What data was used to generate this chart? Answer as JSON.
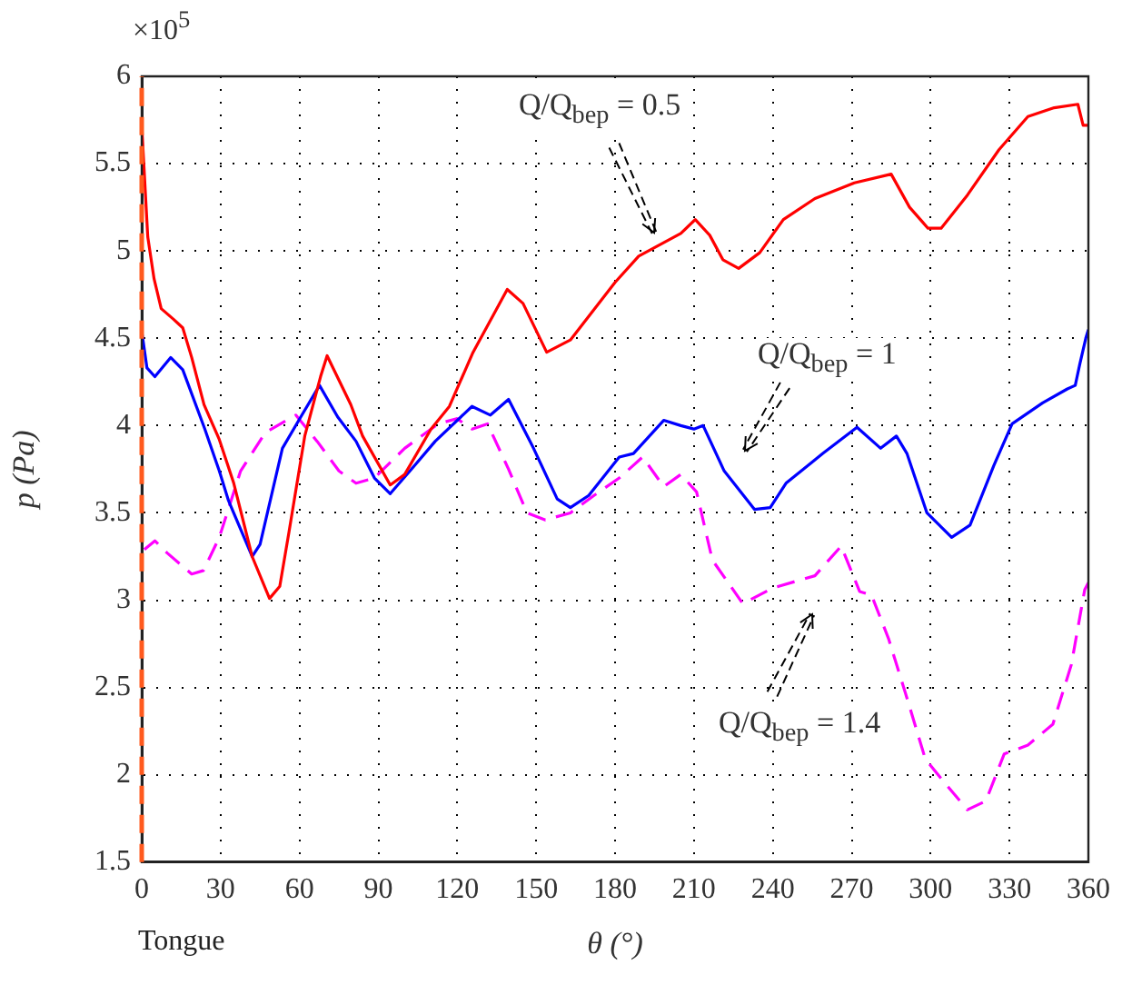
{
  "chart_data": {
    "type": "line",
    "xlabel": "θ (°)",
    "ylabel": "p (Pa)",
    "xlim": [
      0,
      360
    ],
    "xticks": [
      0,
      30,
      60,
      90,
      120,
      150,
      180,
      210,
      240,
      270,
      300,
      330,
      360
    ],
    "ylim": [
      1.5,
      6
    ],
    "yticks": [
      1.5,
      2,
      2.5,
      3,
      3.5,
      4,
      4.5,
      5,
      5.5,
      6
    ],
    "grid": true,
    "legend": false,
    "marker": "none",
    "series": [
      {
        "color": "#ff0000",
        "line_style": "solid",
        "x": [
          0,
          2.3,
          4.7,
          7.4,
          12,
          15.6,
          19,
          23.7,
          29.5,
          35,
          42,
          48.6,
          52.5,
          56,
          62,
          68,
          70.5,
          79.5,
          84,
          94.5,
          100,
          110,
          117,
          126,
          139,
          145,
          154,
          163,
          180,
          189,
          205,
          210.5,
          216,
          221,
          227,
          235,
          244,
          256,
          271,
          285,
          292,
          299,
          304,
          314,
          326,
          337,
          347,
          356,
          358,
          360
        ],
        "values": [
          5.72,
          5.08,
          4.84,
          4.67,
          4.61,
          4.56,
          4.39,
          4.12,
          3.92,
          3.67,
          3.25,
          3.01,
          3.08,
          3.39,
          3.94,
          4.28,
          4.4,
          4.12,
          3.94,
          3.66,
          3.72,
          3.98,
          4.11,
          4.42,
          4.78,
          4.7,
          4.42,
          4.49,
          4.82,
          4.97,
          5.1,
          5.18,
          5.09,
          4.95,
          4.9,
          4.99,
          5.18,
          5.3,
          5.39,
          5.44,
          5.25,
          5.13,
          5.13,
          5.32,
          5.58,
          5.77,
          5.82,
          5.84,
          5.72,
          5.72
        ]
      },
      {
        "color": "#0000ff",
        "line_style": "solid",
        "x": [
          0,
          2,
          5,
          11,
          15.6,
          24,
          29.5,
          33,
          42,
          45,
          53.5,
          60.5,
          67.6,
          74.5,
          81.5,
          88.5,
          94.5,
          102,
          111.6,
          125.6,
          132.6,
          139.5,
          149,
          158,
          163,
          170,
          181.6,
          187,
          198.5,
          205,
          210,
          213.5,
          221.5,
          233,
          239,
          245,
          259,
          272,
          281,
          287,
          291,
          298.6,
          308,
          315,
          324,
          331,
          342.6,
          352,
          355,
          356.7,
          359,
          360
        ],
        "values": [
          4.54,
          4.33,
          4.28,
          4.39,
          4.32,
          3.98,
          3.74,
          3.57,
          3.25,
          3.32,
          3.87,
          4.05,
          4.23,
          4.05,
          3.91,
          3.7,
          3.61,
          3.74,
          3.91,
          4.11,
          4.06,
          4.15,
          3.87,
          3.58,
          3.53,
          3.6,
          3.82,
          3.84,
          4.03,
          4.0,
          3.98,
          4.0,
          3.74,
          3.52,
          3.53,
          3.67,
          3.84,
          3.99,
          3.87,
          3.94,
          3.84,
          3.5,
          3.36,
          3.43,
          3.77,
          4.01,
          4.13,
          4.21,
          4.23,
          4.35,
          4.5,
          4.55
        ]
      },
      {
        "color": "#ff00ff",
        "line_style": "dashed",
        "x": [
          1,
          5,
          9.7,
          19,
          23.5,
          29.5,
          37.6,
          47,
          58.6,
          66.7,
          75,
          81.5,
          88.5,
          100,
          112.8,
          119.8,
          125.6,
          131.5,
          139.5,
          146.5,
          153.5,
          163,
          172,
          181.6,
          190.5,
          198.5,
          205,
          211,
          217,
          228.6,
          240,
          256,
          266,
          273,
          277.5,
          284,
          291,
          298,
          305,
          314,
          321,
          328,
          337,
          346.5,
          353.5,
          358.6,
          360
        ],
        "values": [
          3.29,
          3.34,
          3.27,
          3.15,
          3.17,
          3.36,
          3.74,
          3.96,
          4.06,
          3.91,
          3.74,
          3.67,
          3.7,
          3.87,
          4.01,
          4.04,
          3.98,
          4.01,
          3.75,
          3.5,
          3.46,
          3.5,
          3.6,
          3.7,
          3.82,
          3.65,
          3.72,
          3.62,
          3.23,
          2.98,
          3.07,
          3.14,
          3.31,
          3.05,
          3.03,
          2.78,
          2.44,
          2.09,
          1.96,
          1.8,
          1.85,
          2.12,
          2.17,
          2.29,
          2.63,
          3.06,
          3.1
        ]
      }
    ],
    "ref_lines": [
      {
        "axis": "x",
        "value": 0,
        "label": "Tongue",
        "color": "#ff5a1e",
        "line_style": "dashed"
      }
    ],
    "annotations": [
      "×10$^{5}$",
      "Q/Q$_{bep}$ = 0.5",
      "Q/Q$_{bep}$ = 1",
      "Q/Q$_{bep}$ = 1.4"
    ]
  }
}
